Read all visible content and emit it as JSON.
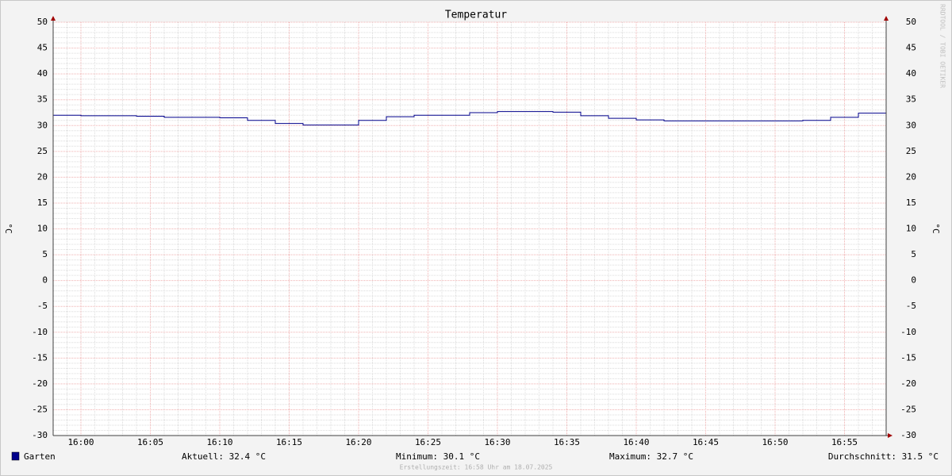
{
  "chart_data": {
    "type": "step",
    "title": "Temperatur",
    "ylabel": "°C",
    "x": [
      "15:58",
      "16:00",
      "16:02",
      "16:04",
      "16:06",
      "16:08",
      "16:10",
      "16:12",
      "16:14",
      "16:16",
      "16:18",
      "16:20",
      "16:22",
      "16:24",
      "16:26",
      "16:28",
      "16:30",
      "16:32",
      "16:34",
      "16:36",
      "16:38",
      "16:40",
      "16:42",
      "16:44",
      "16:46",
      "16:48",
      "16:50",
      "16:52",
      "16:54",
      "16:56"
    ],
    "series": [
      {
        "name": "Garten",
        "color": "#00008b",
        "values": [
          32.0,
          31.9,
          31.9,
          31.8,
          31.6,
          31.6,
          31.5,
          31.0,
          30.4,
          30.1,
          30.1,
          31.0,
          31.7,
          32.0,
          32.0,
          32.5,
          32.7,
          32.7,
          32.6,
          31.9,
          31.4,
          31.1,
          30.9,
          30.9,
          30.9,
          30.9,
          30.9,
          31.0,
          31.6,
          32.4
        ]
      }
    ],
    "xlim": [
      "15:58",
      "16:58"
    ],
    "xticks": [
      "16:00",
      "16:05",
      "16:10",
      "16:15",
      "16:20",
      "16:25",
      "16:30",
      "16:35",
      "16:40",
      "16:45",
      "16:50",
      "16:55"
    ],
    "ylim": [
      -30,
      50
    ],
    "yticks": [
      -30,
      -25,
      -20,
      -15,
      -10,
      -5,
      0,
      5,
      10,
      15,
      20,
      25,
      30,
      35,
      40,
      45,
      50
    ],
    "grid": true,
    "minor_grid": true,
    "stats": [
      "Aktuell: 32.4 °C",
      "Minimum: 30.1 °C",
      "Maximum: 32.7 °C",
      "Durchschnitt: 31.5 °C"
    ],
    "footer": "Erstellungszeit: 16:58 Uhr am 18.07.2025",
    "watermark": "RRDTOOL / TOBI OETIKER"
  }
}
